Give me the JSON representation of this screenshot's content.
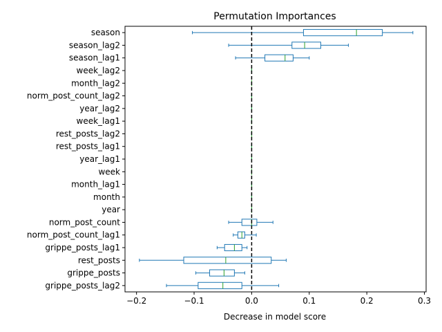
{
  "chart_data": {
    "type": "boxplot-horizontal",
    "title": "Permutation Importances",
    "xlabel": "Decrease in model score",
    "ylabel": "",
    "xlim": [
      -0.22,
      0.303
    ],
    "xticks": [
      -0.2,
      -0.1,
      0.0,
      0.1,
      0.2,
      0.3
    ],
    "xtick_labels": [
      "−0.2",
      "−0.1",
      "0.0",
      "0.1",
      "0.2",
      "0.3"
    ],
    "reference_line": {
      "x": 0.0,
      "style": "dashed",
      "color": "#000000"
    },
    "colors": {
      "box": "#1f77b4",
      "median": "#2ca02c"
    },
    "features": [
      {
        "name": "season",
        "whislo": -0.103,
        "q1": 0.09,
        "med": 0.182,
        "q3": 0.227,
        "whishi": 0.28
      },
      {
        "name": "season_lag2",
        "whislo": -0.04,
        "q1": 0.07,
        "med": 0.092,
        "q3": 0.12,
        "whishi": 0.168
      },
      {
        "name": "season_lag1",
        "whislo": -0.028,
        "q1": 0.023,
        "med": 0.058,
        "q3": 0.072,
        "whishi": 0.1
      },
      {
        "name": "week_lag2",
        "whislo": 0,
        "q1": 0,
        "med": 0,
        "q3": 0,
        "whishi": 0
      },
      {
        "name": "month_lag2",
        "whislo": 0,
        "q1": 0,
        "med": 0,
        "q3": 0,
        "whishi": 0
      },
      {
        "name": "norm_post_count_lag2",
        "whislo": 0,
        "q1": 0,
        "med": 0,
        "q3": 0,
        "whishi": 0
      },
      {
        "name": "year_lag2",
        "whislo": 0,
        "q1": 0,
        "med": 0,
        "q3": 0,
        "whishi": 0
      },
      {
        "name": "week_lag1",
        "whislo": 0,
        "q1": 0,
        "med": 0,
        "q3": 0,
        "whishi": 0
      },
      {
        "name": "rest_posts_lag2",
        "whislo": 0,
        "q1": 0,
        "med": 0,
        "q3": 0,
        "whishi": 0
      },
      {
        "name": "rest_posts_lag1",
        "whislo": 0,
        "q1": 0,
        "med": 0,
        "q3": 0,
        "whishi": 0
      },
      {
        "name": "year_lag1",
        "whislo": 0,
        "q1": 0,
        "med": 0,
        "q3": 0,
        "whishi": 0
      },
      {
        "name": "week",
        "whislo": 0,
        "q1": 0,
        "med": 0,
        "q3": 0,
        "whishi": 0
      },
      {
        "name": "month_lag1",
        "whislo": 0,
        "q1": 0,
        "med": 0,
        "q3": 0,
        "whishi": 0
      },
      {
        "name": "month",
        "whislo": 0,
        "q1": 0,
        "med": 0,
        "q3": 0,
        "whishi": 0
      },
      {
        "name": "year",
        "whislo": 0,
        "q1": 0,
        "med": 0,
        "q3": 0,
        "whishi": 0
      },
      {
        "name": "norm_post_count",
        "whislo": -0.04,
        "q1": -0.017,
        "med": 0.0,
        "q3": 0.009,
        "whishi": 0.037
      },
      {
        "name": "norm_post_count_lag1",
        "whislo": -0.032,
        "q1": -0.024,
        "med": -0.017,
        "q3": -0.012,
        "whishi": 0.008
      },
      {
        "name": "grippe_posts_lag1",
        "whislo": -0.06,
        "q1": -0.047,
        "med": -0.03,
        "q3": -0.017,
        "whishi": -0.008
      },
      {
        "name": "rest_posts",
        "whislo": -0.195,
        "q1": -0.118,
        "med": -0.045,
        "q3": 0.034,
        "whishi": 0.06
      },
      {
        "name": "grippe_posts",
        "whislo": -0.097,
        "q1": -0.073,
        "med": -0.048,
        "q3": -0.03,
        "whishi": -0.012
      },
      {
        "name": "grippe_posts_lag2",
        "whislo": -0.148,
        "q1": -0.093,
        "med": -0.05,
        "q3": -0.017,
        "whishi": 0.047
      }
    ]
  }
}
